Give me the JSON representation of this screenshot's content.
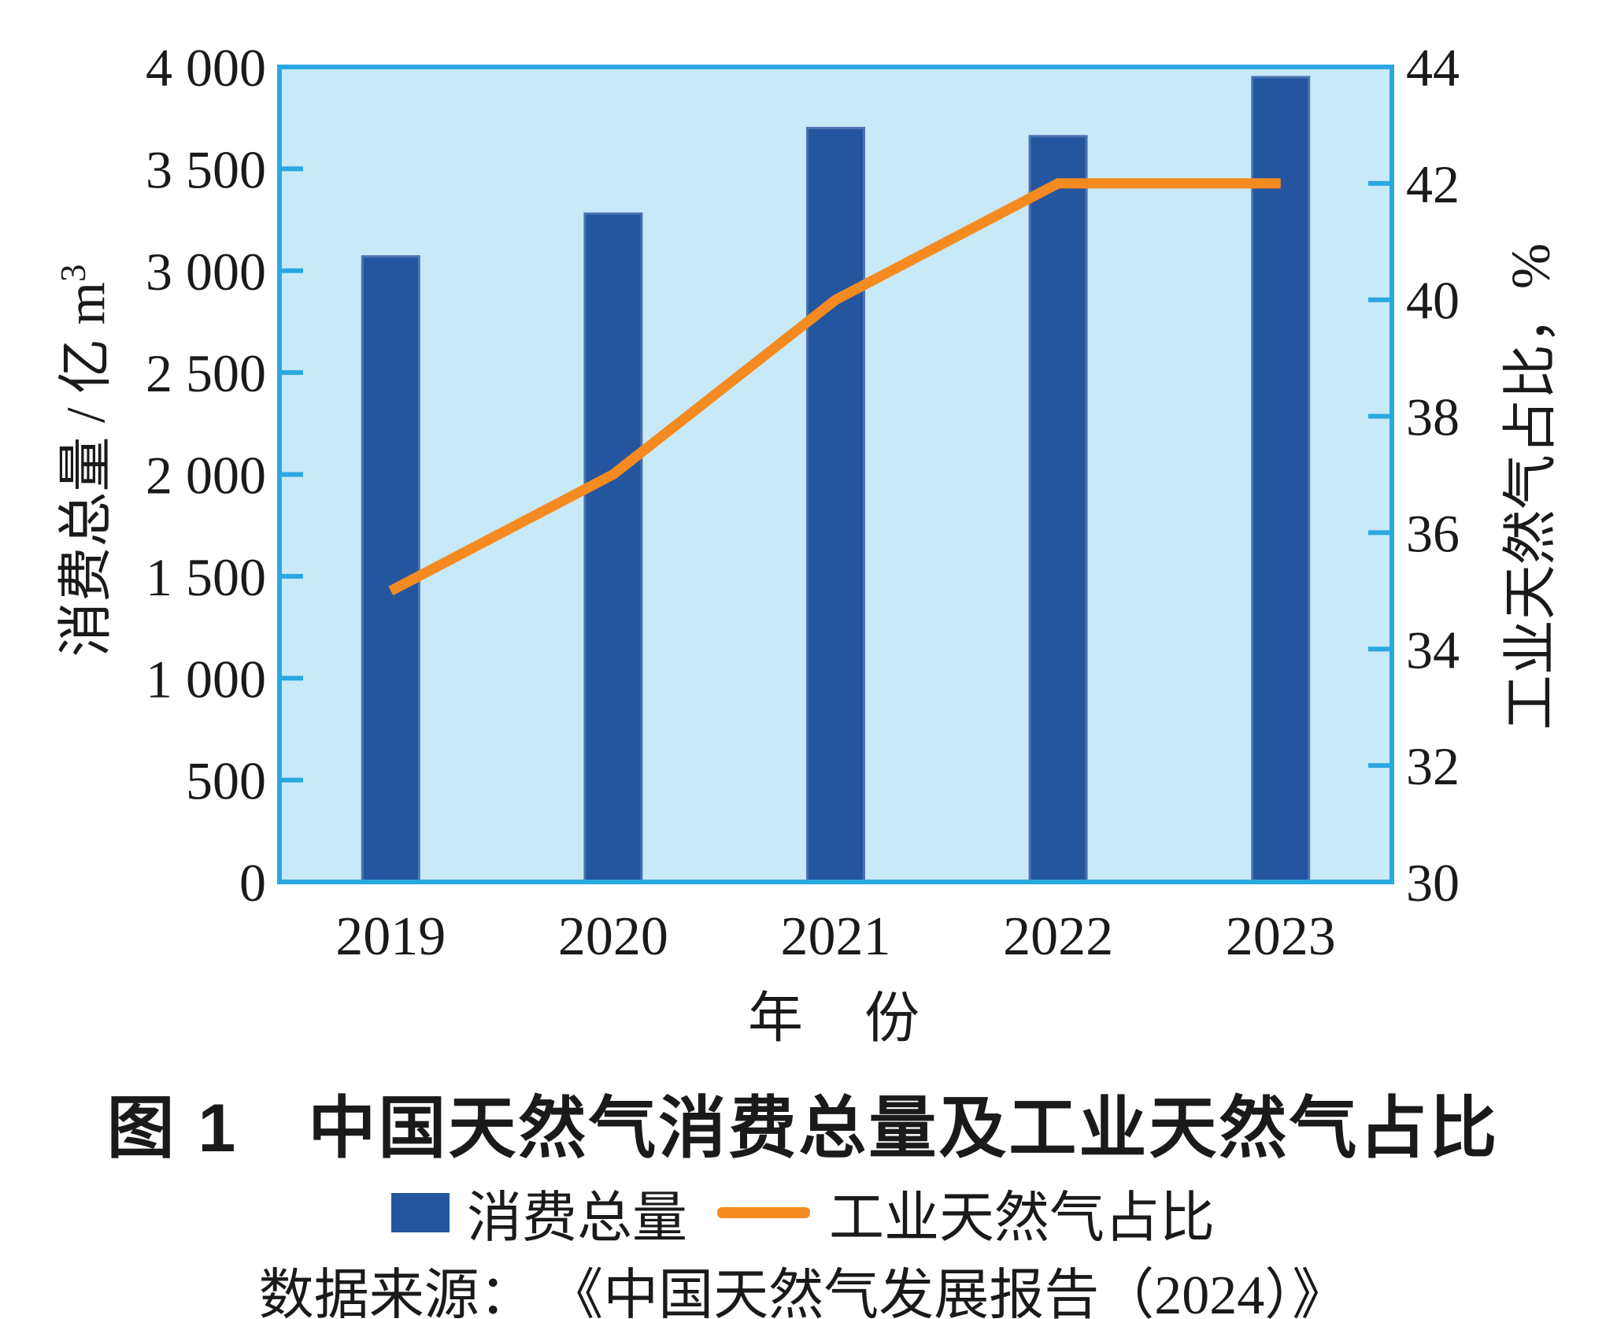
{
  "figure": {
    "title": "图 1　中国天然气消费总量及工业天然气占比",
    "source": "数据来源： 《中国天然气发展报告（2024）》"
  },
  "legend": {
    "bar_label": "消费总量",
    "line_label": "工业天然气占比"
  },
  "axes": {
    "left_title_main": "消费总量 / 亿 m",
    "left_title_sup": "3",
    "right_title": "工业天然气占比，%",
    "x_title": "年　份"
  },
  "chart_data": {
    "type": "combo",
    "categories": [
      "2019",
      "2020",
      "2021",
      "2022",
      "2023"
    ],
    "series": [
      {
        "name": "消费总量",
        "type": "bar",
        "axis": "left",
        "values": [
          3070,
          3280,
          3700,
          3660,
          3950
        ]
      },
      {
        "name": "工业天然气占比",
        "type": "line",
        "axis": "right",
        "values": [
          35,
          37,
          40,
          42,
          42
        ]
      }
    ],
    "left_axis": {
      "title": "消费总量 / 亿 m³",
      "min": 0,
      "max": 4000,
      "step": 500,
      "tick_labels": [
        "0",
        "500",
        "1 000",
        "1 500",
        "2 000",
        "2 500",
        "3 000",
        "3 500",
        "4 000"
      ]
    },
    "right_axis": {
      "title": "工业天然气占比，%",
      "min": 30,
      "max": 44,
      "step": 2,
      "tick_labels": [
        "30",
        "32",
        "34",
        "36",
        "38",
        "40",
        "42",
        "44"
      ]
    },
    "x_axis": {
      "title": "年　份"
    },
    "grid": false,
    "legend_position": "bottom",
    "colors": {
      "bar": "#23569F",
      "bar_edge": "#4C72B0",
      "line": "#F58B20",
      "plot_bg": "#C8E9F8",
      "axis": "#29A8E0",
      "text": "#1A1A1A"
    }
  }
}
